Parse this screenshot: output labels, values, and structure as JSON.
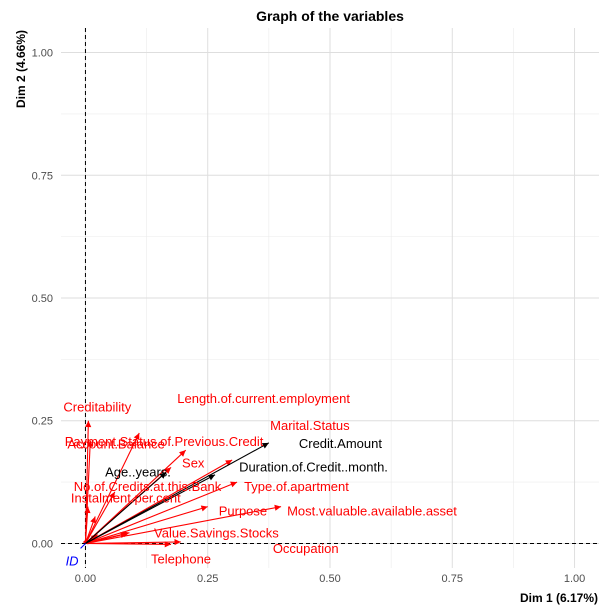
{
  "chart_data": {
    "type": "scatter",
    "title": "Graph of the variables",
    "xlabel": "Dim 1 (6.17%)",
    "ylabel": "Dim 2 (4.66%)",
    "xlim": [
      -0.05,
      1.05
    ],
    "ylim": [
      -0.05,
      1.05
    ],
    "xticks": [
      "0.00",
      "0.25",
      "0.50",
      "0.75",
      "1.00"
    ],
    "yticks": [
      "0.00",
      "0.25",
      "0.50",
      "0.75",
      "1.00"
    ],
    "grid": true,
    "reference_lines": {
      "x": 0,
      "y": 0
    },
    "colors": {
      "active": "#ff0000",
      "supplementary": "#000000",
      "id": "#0000ff"
    },
    "points": [
      {
        "label": "Creditability",
        "x": 0.006,
        "y": 0.25,
        "group": "active"
      },
      {
        "label": "Account.Balance",
        "x": 0.01,
        "y": 0.21,
        "group": "active"
      },
      {
        "label": "Length.of.current.employment",
        "x": 0.11,
        "y": 0.225,
        "group": "active"
      },
      {
        "label": "Payment.Status.of.Previous.Credit",
        "x": 0.205,
        "y": 0.19,
        "group": "active"
      },
      {
        "label": "Marital.Status",
        "x": 0.3,
        "y": 0.17,
        "group": "active"
      },
      {
        "label": "Sex",
        "x": 0.175,
        "y": 0.155,
        "group": "active"
      },
      {
        "label": "Type.of.apartment",
        "x": 0.31,
        "y": 0.125,
        "group": "active"
      },
      {
        "label": "No.of.Credits.at.this.Bank",
        "x": 0.06,
        "y": 0.105,
        "group": "active"
      },
      {
        "label": "Purpose",
        "x": 0.25,
        "y": 0.075,
        "group": "active"
      },
      {
        "label": "Most.valuable.available.asset",
        "x": 0.4,
        "y": 0.075,
        "group": "active"
      },
      {
        "label": "Instalment.per.cent",
        "x": 0.005,
        "y": 0.075,
        "group": "active"
      },
      {
        "label": "Value.Savings.Stocks",
        "x": 0.085,
        "y": 0.02,
        "group": "active"
      },
      {
        "label": "Occupation",
        "x": 0.195,
        "y": 0.003,
        "group": "active"
      },
      {
        "label": "Telephone",
        "x": 0.175,
        "y": -0.002,
        "group": "active"
      },
      {
        "label": "Credit.Amount",
        "x": 0.375,
        "y": 0.205,
        "group": "supplementary"
      },
      {
        "label": "Duration.of.Credit..month.",
        "x": 0.265,
        "y": 0.14,
        "group": "supplementary"
      },
      {
        "label": "Age..years.",
        "x": 0.165,
        "y": 0.145,
        "group": "supplementary"
      },
      {
        "label": "ID",
        "x": -0.01,
        "y": -0.01,
        "group": "id"
      }
    ],
    "unlabeled_points": [
      {
        "x": 0.005,
        "y": 0.012
      },
      {
        "x": 0.025,
        "y": 0.018
      },
      {
        "x": 0.09,
        "y": 0.022
      },
      {
        "x": 0.02,
        "y": 0.055
      }
    ]
  }
}
